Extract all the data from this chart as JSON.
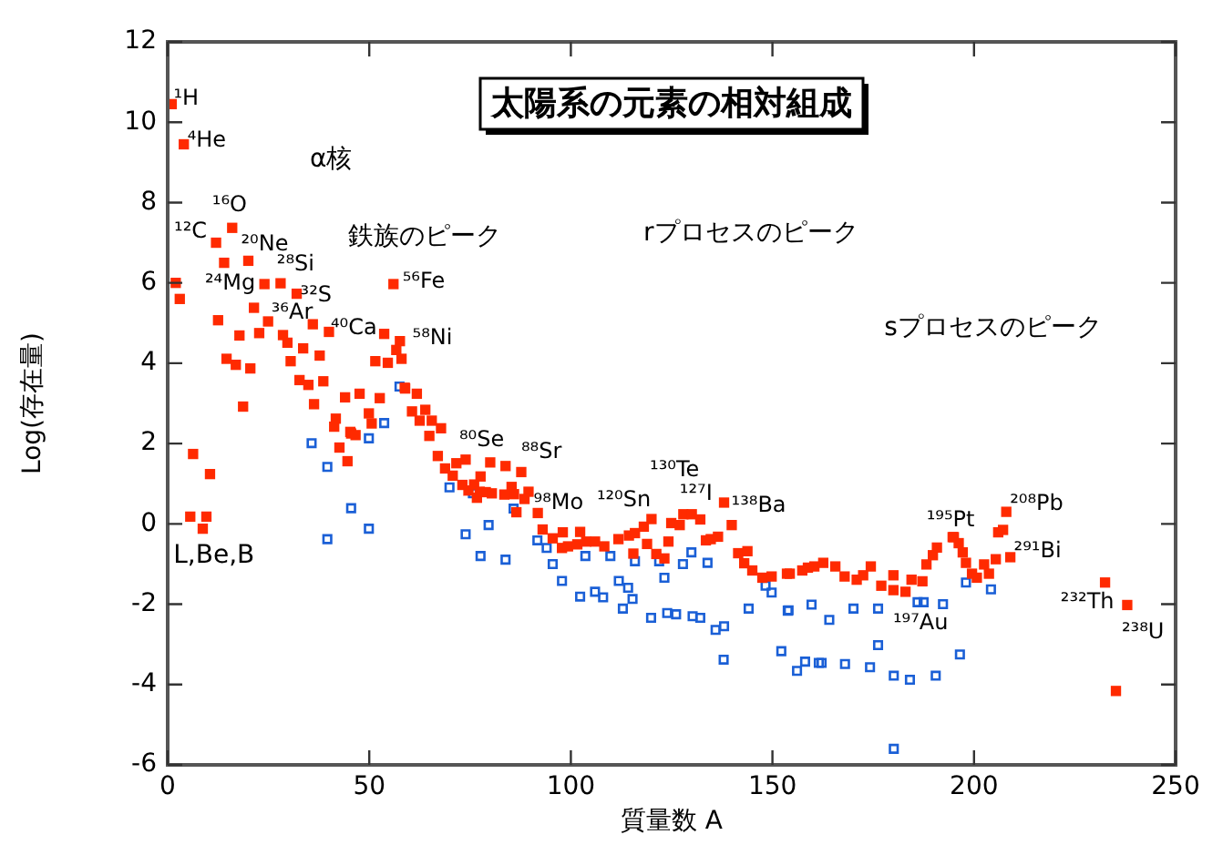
{
  "chart_data": {
    "type": "scatter",
    "title": "太陽系の元素の相対組成",
    "xlabel": "質量数 A",
    "ylabel": "Log(存在量)",
    "xlim": [
      0,
      250
    ],
    "xticks": [
      0,
      50,
      100,
      150,
      200,
      250
    ],
    "ylim": [
      -6,
      12
    ],
    "yticks": [
      -6,
      -4,
      -2,
      0,
      2,
      4,
      6,
      8,
      10,
      12
    ],
    "grid": false,
    "marker": "square",
    "series": [
      {
        "color": "#ff2a00",
        "x": [
          1,
          4,
          2,
          3,
          12,
          16,
          14,
          20,
          24,
          28,
          32,
          36,
          40,
          12.5,
          17.8,
          21.4,
          22.7,
          24.9,
          28.6,
          29.7,
          30.5,
          33.6,
          37.7,
          14.6,
          16.9,
          20.5,
          32.7,
          34.9,
          38.6,
          36.3,
          18.7,
          44,
          47.6,
          52.6,
          41.7,
          45.5,
          49.9,
          56,
          53.7,
          57.6,
          56.7,
          51.5,
          54.6,
          58,
          58.8,
          61.8,
          60.6,
          63.9,
          62.5,
          65.5,
          67.8,
          6.3,
          5.6,
          9.6,
          10.5,
          8.7,
          41.3,
          42.6,
          44.6,
          45.3,
          46.6,
          50.6,
          58.9,
          64.9,
          67,
          68.8,
          70.7,
          71.6,
          73.9,
          73.1,
          74.6,
          76,
          76.7,
          77.6,
          78.9,
          80,
          83.8,
          87.7,
          85.3,
          85.9,
          89.5,
          88.5,
          86.5,
          77.4,
          80.4,
          83.5,
          91.8,
          93,
          95.5,
          98,
          97.8,
          99.3,
          101.6,
          102.3,
          103.8,
          106,
          108.3,
          111.8,
          114.4,
          115.9,
          115.5,
          118.1,
          118.9,
          120,
          121.2,
          123.2,
          124.2,
          124.9,
          127,
          127.9,
          130,
          132.1,
          133.5,
          134.7,
          136.5,
          138,
          139.9,
          141.5,
          143.8,
          143,
          145,
          147.5,
          149.8,
          153.6,
          157.4,
          160.4,
          154.3,
          158.8,
          162.6,
          165.6,
          167.9,
          170.9,
          172.5,
          174.4,
          177,
          180,
          180,
          183,
          184.5,
          187.2,
          188.2,
          189.8,
          190.8,
          195,
          194.7,
          196.2,
          197.2,
          198,
          199.5,
          200.7,
          202.5,
          203.7,
          205.4,
          206,
          207.2,
          208,
          209,
          232.5,
          238,
          235.2
        ],
        "values": [
          10.45,
          9.45,
          6.0,
          5.6,
          7.0,
          7.37,
          6.5,
          6.55,
          5.97,
          5.99,
          5.73,
          4.97,
          4.78,
          5.07,
          4.69,
          5.38,
          4.75,
          5.04,
          4.7,
          4.51,
          4.05,
          4.37,
          4.19,
          4.11,
          3.96,
          3.87,
          3.58,
          3.46,
          3.55,
          2.98,
          2.92,
          3.15,
          3.24,
          3.13,
          2.62,
          2.25,
          2.75,
          5.97,
          4.73,
          4.55,
          4.33,
          4.05,
          4.01,
          4.11,
          3.39,
          3.24,
          2.8,
          2.84,
          2.57,
          2.57,
          2.38,
          1.74,
          0.18,
          0.18,
          1.24,
          -0.12,
          2.42,
          1.9,
          1.56,
          2.29,
          2.21,
          2.5,
          3.37,
          2.19,
          1.69,
          1.38,
          1.2,
          1.51,
          1.6,
          0.97,
          0.83,
          0.98,
          0.65,
          1.18,
          0.79,
          1.53,
          1.44,
          1.29,
          0.92,
          0.74,
          0.8,
          0.62,
          0.29,
          0.8,
          0.76,
          0.73,
          0.27,
          -0.14,
          -0.36,
          -0.21,
          -0.6,
          -0.56,
          -0.51,
          -0.2,
          -0.44,
          -0.44,
          -0.56,
          -0.38,
          -0.29,
          -0.23,
          -0.74,
          -0.07,
          -0.5,
          0.12,
          -0.75,
          -0.86,
          -0.44,
          0.02,
          -0.03,
          0.24,
          0.24,
          0.11,
          -0.41,
          -0.38,
          -0.32,
          0.53,
          -0.03,
          -0.73,
          -0.68,
          -0.98,
          -1.16,
          -1.34,
          -1.31,
          -1.24,
          -1.16,
          -1.06,
          -1.24,
          -1.09,
          -0.97,
          -1.06,
          -1.31,
          -1.39,
          -1.28,
          -1.06,
          -1.54,
          -1.28,
          -1.65,
          -1.69,
          -1.39,
          -1.43,
          -1.01,
          -0.78,
          -0.59,
          -0.33,
          -0.33,
          -0.48,
          -0.71,
          -0.97,
          -1.24,
          -1.34,
          -1.01,
          -1.24,
          -0.88,
          -0.21,
          -0.15,
          0.3,
          -0.83,
          -1.46,
          -2.02,
          -4.16
        ]
      },
      {
        "color": "#1a5fd6",
        "x": [
          57.5,
          53.7,
          35.7,
          39.6,
          39.6,
          45.5,
          49.9,
          49.9,
          69.9,
          75.7,
          73.9,
          77.6,
          79.6,
          83.8,
          85.8,
          91.7,
          94,
          95.5,
          97.8,
          102.3,
          106,
          108,
          103.6,
          109.8,
          111.9,
          114.2,
          115.3,
          112.9,
          115.9,
          121.9,
          123.2,
          119.9,
          123.9,
          126.1,
          127.8,
          129.9,
          130.2,
          132.1,
          133.9,
          135.9,
          138,
          137.9,
          144.1,
          148.3,
          149.8,
          152.2,
          153.8,
          156.1,
          158.1,
          159.7,
          161.5,
          154,
          164.1,
          170.1,
          176.2,
          186,
          187.5,
          192.3,
          198,
          204.2,
          162.2,
          168,
          174.2,
          176.2,
          180.1,
          184.1,
          190.5,
          196.5,
          180.1
        ],
        "values": [
          3.42,
          2.51,
          2.01,
          1.42,
          -0.38,
          0.39,
          -0.12,
          2.13,
          0.91,
          0.76,
          -0.26,
          -0.8,
          -0.03,
          -0.89,
          0.38,
          -0.41,
          -0.6,
          -1.0,
          -1.42,
          -1.81,
          -1.69,
          -1.83,
          -0.8,
          -0.8,
          -1.42,
          -1.59,
          -1.87,
          -2.11,
          -0.93,
          -0.93,
          -1.34,
          -2.34,
          -2.22,
          -2.25,
          -1.0,
          -0.71,
          -2.3,
          -2.34,
          -0.97,
          -2.64,
          -2.55,
          -3.38,
          -2.11,
          -1.54,
          -1.71,
          -3.17,
          -2.16,
          -3.66,
          -3.43,
          -2.01,
          -3.46,
          -2.15,
          -2.39,
          -2.11,
          -2.11,
          -1.95,
          -1.95,
          -2.0,
          -1.46,
          -1.63,
          -3.46,
          -3.49,
          -3.57,
          -3.02,
          -3.78,
          -3.88,
          -3.78,
          -3.25,
          -5.6
        ]
      }
    ],
    "annotations": [
      {
        "text": "¹H",
        "x": 1,
        "y": 10.45
      },
      {
        "text": "⁴He",
        "x": 4,
        "y": 9.45
      },
      {
        "text": "¹²C",
        "x": 12,
        "y": 7.0
      },
      {
        "text": "¹⁶O",
        "x": 16,
        "y": 7.37
      },
      {
        "text": "²⁰Ne",
        "x": 20,
        "y": 6.55
      },
      {
        "text": "²⁸Si",
        "x": 28,
        "y": 5.99
      },
      {
        "text": "²⁴Mg",
        "x": 24,
        "y": 5.97
      },
      {
        "text": "³²S",
        "x": 32,
        "y": 5.73
      },
      {
        "text": "³⁶Ar",
        "x": 36,
        "y": 4.97
      },
      {
        "text": "⁴⁰Ca",
        "x": 40,
        "y": 4.78
      },
      {
        "text": "⁵⁶Fe",
        "x": 56,
        "y": 5.97
      },
      {
        "text": "⁵⁸Ni",
        "x": 58,
        "y": 4.11
      },
      {
        "text": "⁸⁰Se",
        "x": 80,
        "y": 1.53
      },
      {
        "text": "⁸⁸Sr",
        "x": 87.7,
        "y": 1.29
      },
      {
        "text": "⁹⁸Mo",
        "x": 98,
        "y": -0.21
      },
      {
        "text": "¹²⁰Sn",
        "x": 120,
        "y": 0.12
      },
      {
        "text": "¹²⁷I",
        "x": 127,
        "y": -0.03
      },
      {
        "text": "¹³⁰Te",
        "x": 130,
        "y": 0.24
      },
      {
        "text": "¹³⁸Ba",
        "x": 138,
        "y": 0.53
      },
      {
        "text": "¹⁹⁵Pt",
        "x": 195,
        "y": -0.33
      },
      {
        "text": "¹⁹⁷Au",
        "x": 197.2,
        "y": -0.71
      },
      {
        "text": "²⁰⁸Pb",
        "x": 208,
        "y": 0.3
      },
      {
        "text": "²⁹¹Bi",
        "x": 209,
        "y": -0.83
      },
      {
        "text": "²³²Th",
        "x": 232.5,
        "y": -1.46
      },
      {
        "text": "²³⁸U",
        "x": 238,
        "y": -2.02
      },
      "α核",
      "鉄族のピーク",
      "L,Be,B",
      "rプロセスのピーク",
      "sプロセスのピーク"
    ]
  }
}
